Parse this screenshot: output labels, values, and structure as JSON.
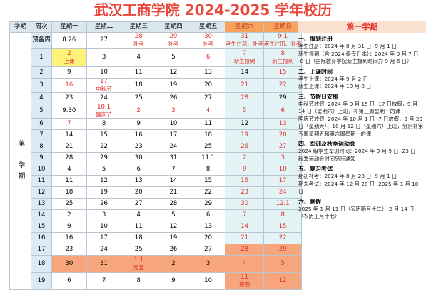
{
  "header": {
    "title": "武汉工商学院 2024-2025 学年校历"
  },
  "table": {
    "columns": [
      "学期",
      "周次",
      "星期一",
      "星期二",
      "星期三",
      "星期四",
      "星期五",
      "星期六",
      "星期日"
    ],
    "semester": "第一学期",
    "rows": [
      {
        "week": "预备周",
        "days": [
          [
            "8.26"
          ],
          [
            "27"
          ],
          [
            "28",
            "补考"
          ],
          [
            "29",
            "补考"
          ],
          [
            "30",
            "补考"
          ],
          [
            "31",
            "老生注册、补考"
          ],
          [
            "9.1",
            "老生注册、补考"
          ]
        ]
      },
      {
        "week": "1",
        "days": [
          [
            "2",
            "上课"
          ],
          [
            "3"
          ],
          [
            "4"
          ],
          [
            "5"
          ],
          [
            "6"
          ],
          [
            "7",
            "新生报到"
          ],
          [
            "8",
            "新生报到"
          ]
        ]
      },
      {
        "week": "2",
        "days": [
          [
            "9"
          ],
          [
            "10"
          ],
          [
            "11"
          ],
          [
            "12"
          ],
          [
            "13"
          ],
          [
            "14"
          ],
          [
            "15"
          ]
        ]
      },
      {
        "week": "3",
        "days": [
          [
            "16"
          ],
          [
            "17",
            "中秋节"
          ],
          [
            "18"
          ],
          [
            "19"
          ],
          [
            "20"
          ],
          [
            "21"
          ],
          [
            "22"
          ]
        ]
      },
      {
        "week": "4",
        "days": [
          [
            "23"
          ],
          [
            "24"
          ],
          [
            "25"
          ],
          [
            "26"
          ],
          [
            "27"
          ],
          [
            "28"
          ],
          [
            "29"
          ]
        ]
      },
      {
        "week": "5",
        "days": [
          [
            "9.30"
          ],
          [
            "10.1",
            "国庆节"
          ],
          [
            "2"
          ],
          [
            "3"
          ],
          [
            "4"
          ],
          [
            "5"
          ],
          [
            "6"
          ]
        ]
      },
      {
        "week": "6",
        "days": [
          [
            "7"
          ],
          [
            "8"
          ],
          [
            "9"
          ],
          [
            "10"
          ],
          [
            "11"
          ],
          [
            "12"
          ],
          [
            "13"
          ]
        ]
      },
      {
        "week": "7",
        "days": [
          [
            "14"
          ],
          [
            "15"
          ],
          [
            "16"
          ],
          [
            "17"
          ],
          [
            "18"
          ],
          [
            "19"
          ],
          [
            "20"
          ]
        ]
      },
      {
        "week": "8",
        "days": [
          [
            "21"
          ],
          [
            "22"
          ],
          [
            "23"
          ],
          [
            "24"
          ],
          [
            "25"
          ],
          [
            "26"
          ],
          [
            "27"
          ]
        ]
      },
      {
        "week": "9",
        "days": [
          [
            "28"
          ],
          [
            "29"
          ],
          [
            "30"
          ],
          [
            "31"
          ],
          [
            "11.1"
          ],
          [
            "2"
          ],
          [
            "3"
          ]
        ]
      },
      {
        "week": "10",
        "days": [
          [
            "4"
          ],
          [
            "5"
          ],
          [
            "6"
          ],
          [
            "7"
          ],
          [
            "8"
          ],
          [
            "9"
          ],
          [
            "10"
          ]
        ]
      },
      {
        "week": "11",
        "days": [
          [
            "11"
          ],
          [
            "12"
          ],
          [
            "13"
          ],
          [
            "14"
          ],
          [
            "15"
          ],
          [
            "16"
          ],
          [
            "17"
          ]
        ]
      },
      {
        "week": "12",
        "days": [
          [
            "18"
          ],
          [
            "19"
          ],
          [
            "20"
          ],
          [
            "21"
          ],
          [
            "22"
          ],
          [
            "23"
          ],
          [
            "24"
          ]
        ]
      },
      {
        "week": "13",
        "days": [
          [
            "25"
          ],
          [
            "26"
          ],
          [
            "27"
          ],
          [
            "28"
          ],
          [
            "29"
          ],
          [
            "30"
          ],
          [
            "12.1"
          ]
        ]
      },
      {
        "week": "14",
        "days": [
          [
            "2"
          ],
          [
            "3"
          ],
          [
            "4"
          ],
          [
            "5"
          ],
          [
            "6"
          ],
          [
            "7"
          ],
          [
            "8"
          ]
        ]
      },
      {
        "week": "15",
        "days": [
          [
            "9"
          ],
          [
            "10"
          ],
          [
            "11"
          ],
          [
            "12"
          ],
          [
            "13"
          ],
          [
            "14"
          ],
          [
            "15"
          ]
        ]
      },
      {
        "week": "16",
        "days": [
          [
            "16"
          ],
          [
            "17"
          ],
          [
            "18"
          ],
          [
            "19"
          ],
          [
            "20"
          ],
          [
            "21"
          ],
          [
            "22"
          ]
        ]
      },
      {
        "week": "17",
        "days": [
          [
            "23"
          ],
          [
            "24"
          ],
          [
            "25"
          ],
          [
            "26"
          ],
          [
            "27"
          ],
          [
            "28"
          ],
          [
            "29"
          ]
        ]
      },
      {
        "week": "18",
        "days": [
          [
            "30"
          ],
          [
            "31"
          ],
          [
            "1.1",
            "元旦"
          ],
          [
            "2"
          ],
          [
            "3"
          ],
          [
            "4"
          ],
          [
            "5"
          ]
        ]
      },
      {
        "week": "19",
        "days": [
          [
            "6"
          ],
          [
            "7"
          ],
          [
            "8"
          ],
          [
            "9"
          ],
          [
            "10"
          ],
          [
            "11",
            "寒假"
          ],
          [
            "12"
          ]
        ]
      }
    ]
  },
  "panel": {
    "title": "第一学期",
    "sections": [
      {
        "heading": "一、报到注册",
        "lines": [
          "老生注册：2024 年 8 月 31 日 -9 月 1 日",
          "新生报到（含 2024 级专升本）：2024 年 9 月 7 日 -8 日（国际教育学院新生报到时间为 9 月 6 日）"
        ]
      },
      {
        "heading": "二、上课时间",
        "lines": [
          "老生上课：2024 年 9 月 2 日",
          "新生上课：2024 年 10 月 8 日"
        ]
      },
      {
        "heading": "三、节假日安排",
        "lines": [
          "中秋节放假: 2024 年 9 月 15 日 -17 日放假，9 月 14 日（星期六）上班，补第三周星期一的课",
          "国庆节放假: 2024 年 10 月 1 日 -7 日放假，9 月 29 日（星期天）、10 月 12 日（星期六）上班，分别补第五周星期五和第六周星期一的课"
        ]
      },
      {
        "heading": "四、军训及秋季运动会",
        "lines": [
          "2024 级学生军训时间：2024 年 9 月 9 日 -23 日",
          "秋季运动会时间另行通知"
        ]
      },
      {
        "heading": "五、复习考试",
        "lines": [
          "期初补考：2024 年 8 月 28 日 -9 月 1 日",
          "期末考试：2024 年 12 月 28 日 -2025 年 1 月 10 日"
        ]
      },
      {
        "heading": "六、寒假",
        "lines": [
          "2025 年 1 月 11 日（农历腊月十二）-2 月 14 日（农历正月十七）"
        ]
      }
    ]
  }
}
